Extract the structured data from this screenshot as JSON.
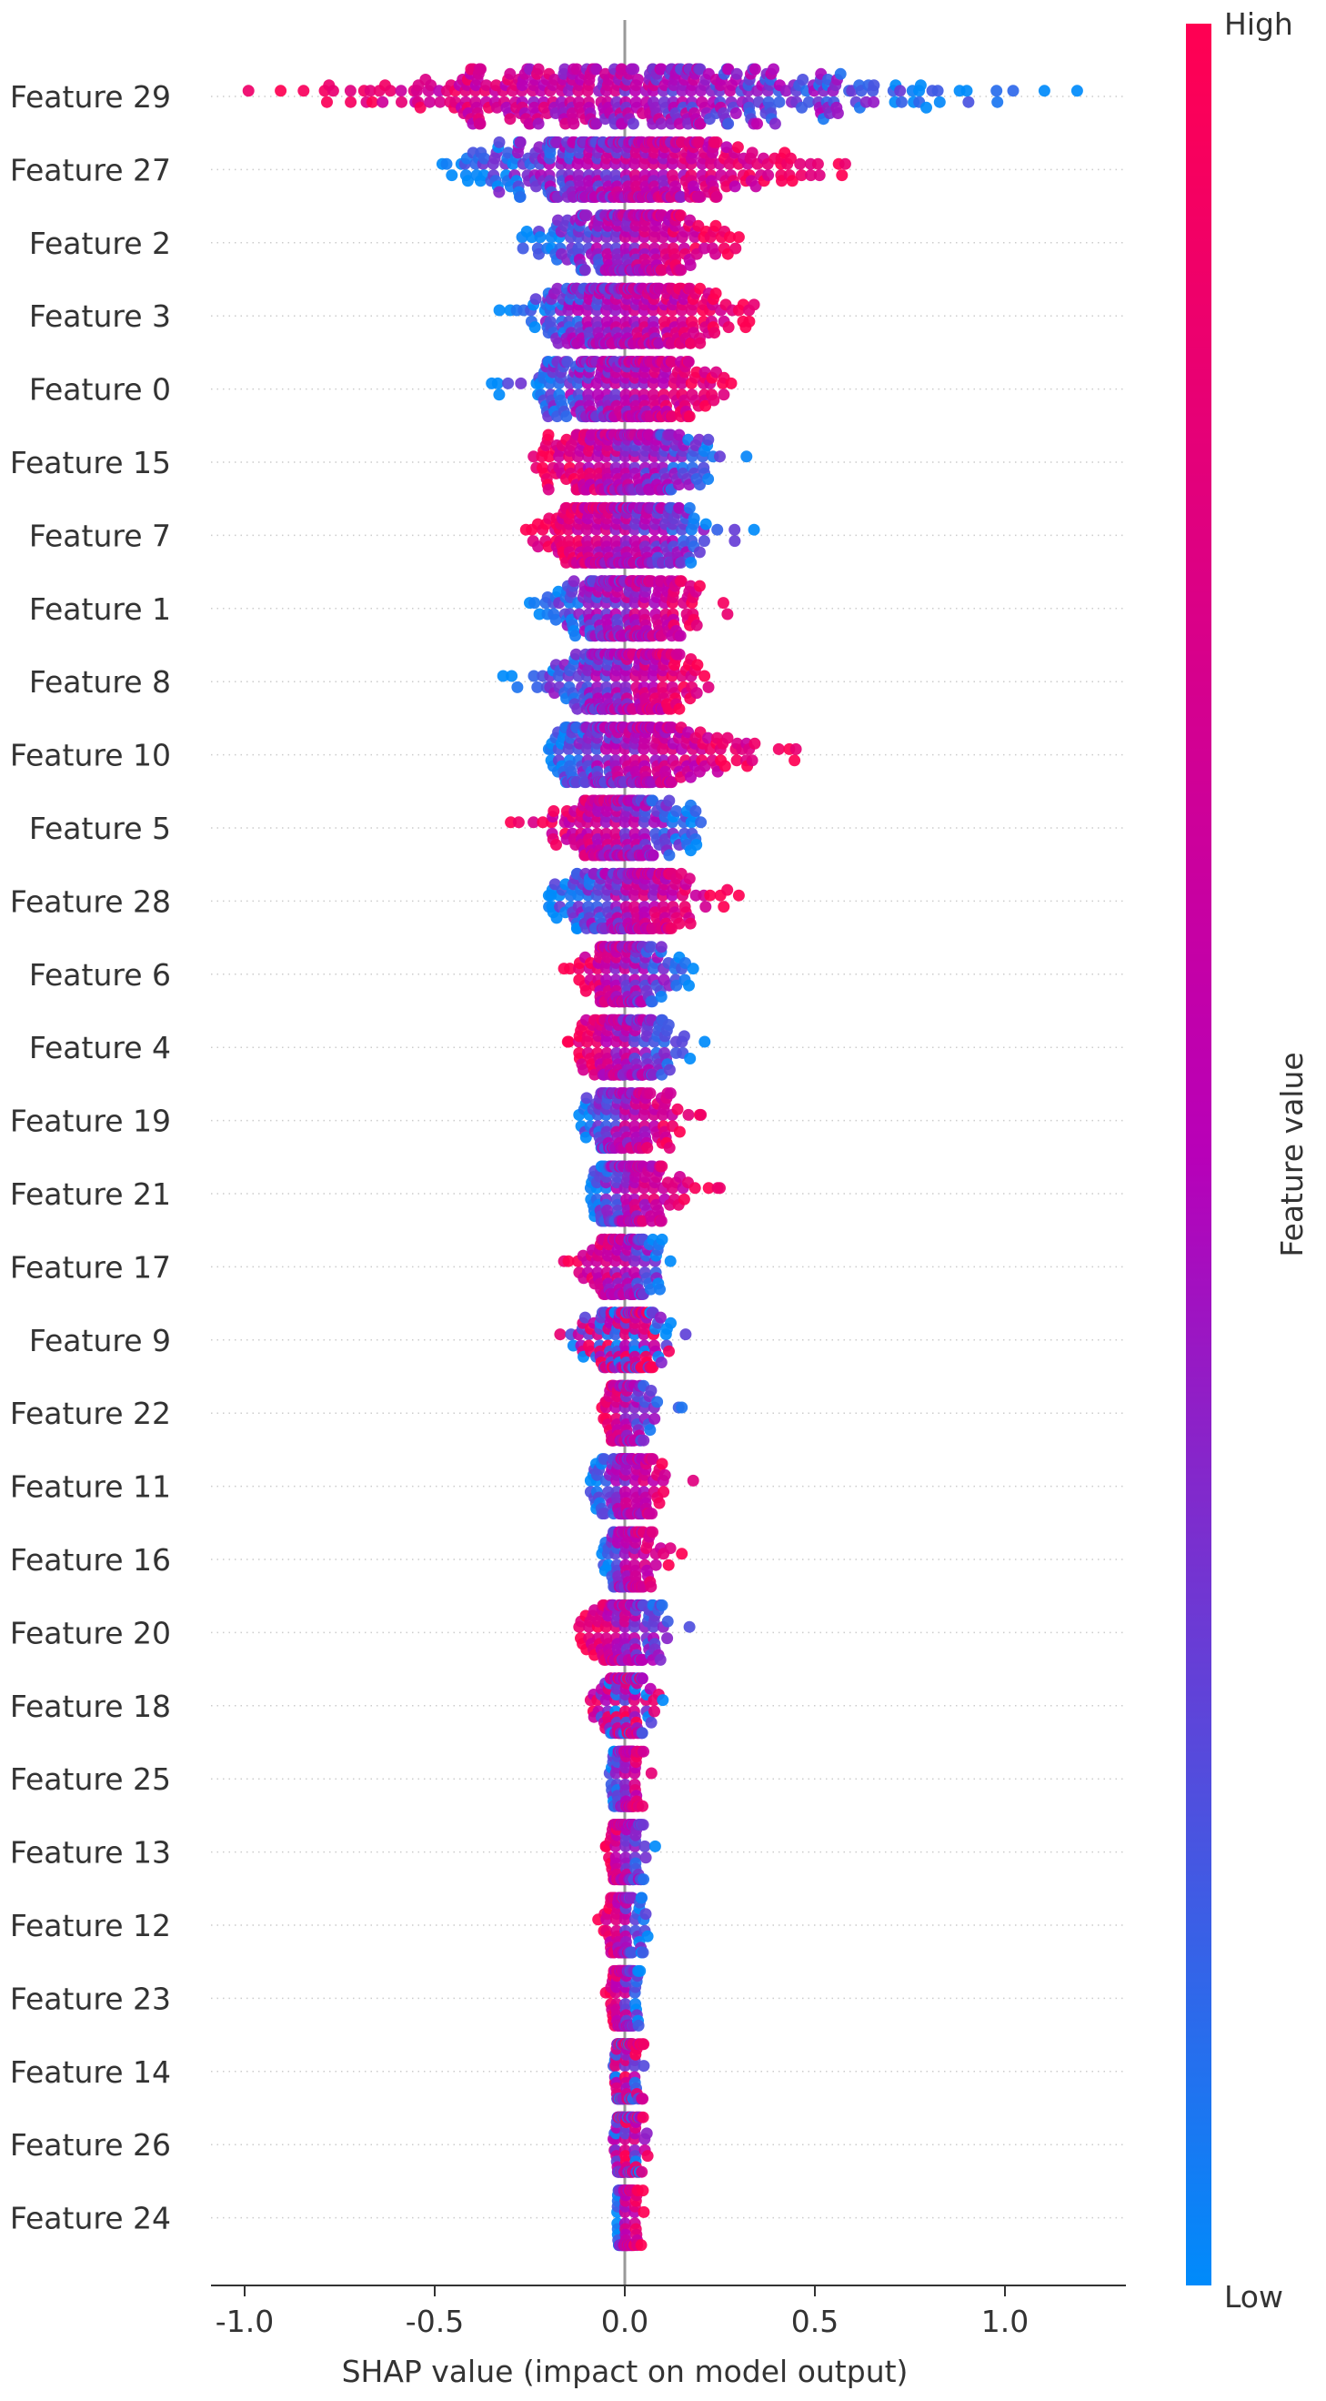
{
  "chart_data": {
    "type": "scatter",
    "subtype": "shap-beeswarm",
    "xlabel": "SHAP value (impact on model output)",
    "ylabel": "",
    "xlim": [
      -1.1,
      1.3
    ],
    "xticks": [
      -1.0,
      -0.5,
      0.0,
      0.5,
      1.0
    ],
    "xtick_labels": [
      "-1.0",
      "-0.5",
      "0.0",
      "0.5",
      "1.0"
    ],
    "grid": "dotted horizontal row lines",
    "zero_line": true,
    "colorbar": {
      "title": "Feature value",
      "high_label": "High",
      "low_label": "Low",
      "high_color": "#ff0052",
      "mid_color": "#b800b8",
      "low_color": "#008bfb"
    },
    "features": [
      {
        "name": "Feature 29",
        "min": -0.99,
        "max": 1.19,
        "trend": "neg"
      },
      {
        "name": "Feature 27",
        "min": -0.48,
        "max": 0.58,
        "trend": "pos"
      },
      {
        "name": "Feature 2",
        "min": -0.27,
        "max": 0.3,
        "trend": "pos"
      },
      {
        "name": "Feature 3",
        "min": -0.33,
        "max": 0.34,
        "trend": "pos"
      },
      {
        "name": "Feature 0",
        "min": -0.35,
        "max": 0.28,
        "trend": "pos"
      },
      {
        "name": "Feature 15",
        "min": -0.24,
        "max": 0.32,
        "trend": "neg"
      },
      {
        "name": "Feature 7",
        "min": -0.26,
        "max": 0.34,
        "trend": "neg"
      },
      {
        "name": "Feature 1",
        "min": -0.25,
        "max": 0.27,
        "trend": "pos"
      },
      {
        "name": "Feature 8",
        "min": -0.32,
        "max": 0.22,
        "trend": "pos"
      },
      {
        "name": "Feature 10",
        "min": -0.2,
        "max": 0.45,
        "trend": "pos"
      },
      {
        "name": "Feature 5",
        "min": -0.3,
        "max": 0.2,
        "trend": "neg"
      },
      {
        "name": "Feature 28",
        "min": -0.2,
        "max": 0.3,
        "trend": "pos"
      },
      {
        "name": "Feature 6",
        "min": -0.16,
        "max": 0.18,
        "trend": "neg"
      },
      {
        "name": "Feature 4",
        "min": -0.15,
        "max": 0.21,
        "trend": "neg"
      },
      {
        "name": "Feature 19",
        "min": -0.12,
        "max": 0.2,
        "trend": "pos"
      },
      {
        "name": "Feature 21",
        "min": -0.09,
        "max": 0.25,
        "trend": "pos"
      },
      {
        "name": "Feature 17",
        "min": -0.16,
        "max": 0.12,
        "trend": "neg"
      },
      {
        "name": "Feature 9",
        "min": -0.17,
        "max": 0.16,
        "trend": "mixed"
      },
      {
        "name": "Feature 22",
        "min": -0.06,
        "max": 0.15,
        "trend": "neg"
      },
      {
        "name": "Feature 11",
        "min": -0.09,
        "max": 0.18,
        "trend": "pos"
      },
      {
        "name": "Feature 16",
        "min": -0.06,
        "max": 0.15,
        "trend": "pos"
      },
      {
        "name": "Feature 20",
        "min": -0.12,
        "max": 0.17,
        "trend": "neg"
      },
      {
        "name": "Feature 18",
        "min": -0.09,
        "max": 0.1,
        "trend": "mixed"
      },
      {
        "name": "Feature 25",
        "min": -0.04,
        "max": 0.07,
        "trend": "pos"
      },
      {
        "name": "Feature 13",
        "min": -0.05,
        "max": 0.08,
        "trend": "neg"
      },
      {
        "name": "Feature 12",
        "min": -0.07,
        "max": 0.06,
        "trend": "neg"
      },
      {
        "name": "Feature 23",
        "min": -0.05,
        "max": 0.04,
        "trend": "neg"
      },
      {
        "name": "Feature 14",
        "min": -0.03,
        "max": 0.05,
        "trend": "mixed"
      },
      {
        "name": "Feature 26",
        "min": -0.03,
        "max": 0.06,
        "trend": "mixed"
      },
      {
        "name": "Feature 24",
        "min": -0.02,
        "max": 0.05,
        "trend": "pos"
      }
    ]
  }
}
